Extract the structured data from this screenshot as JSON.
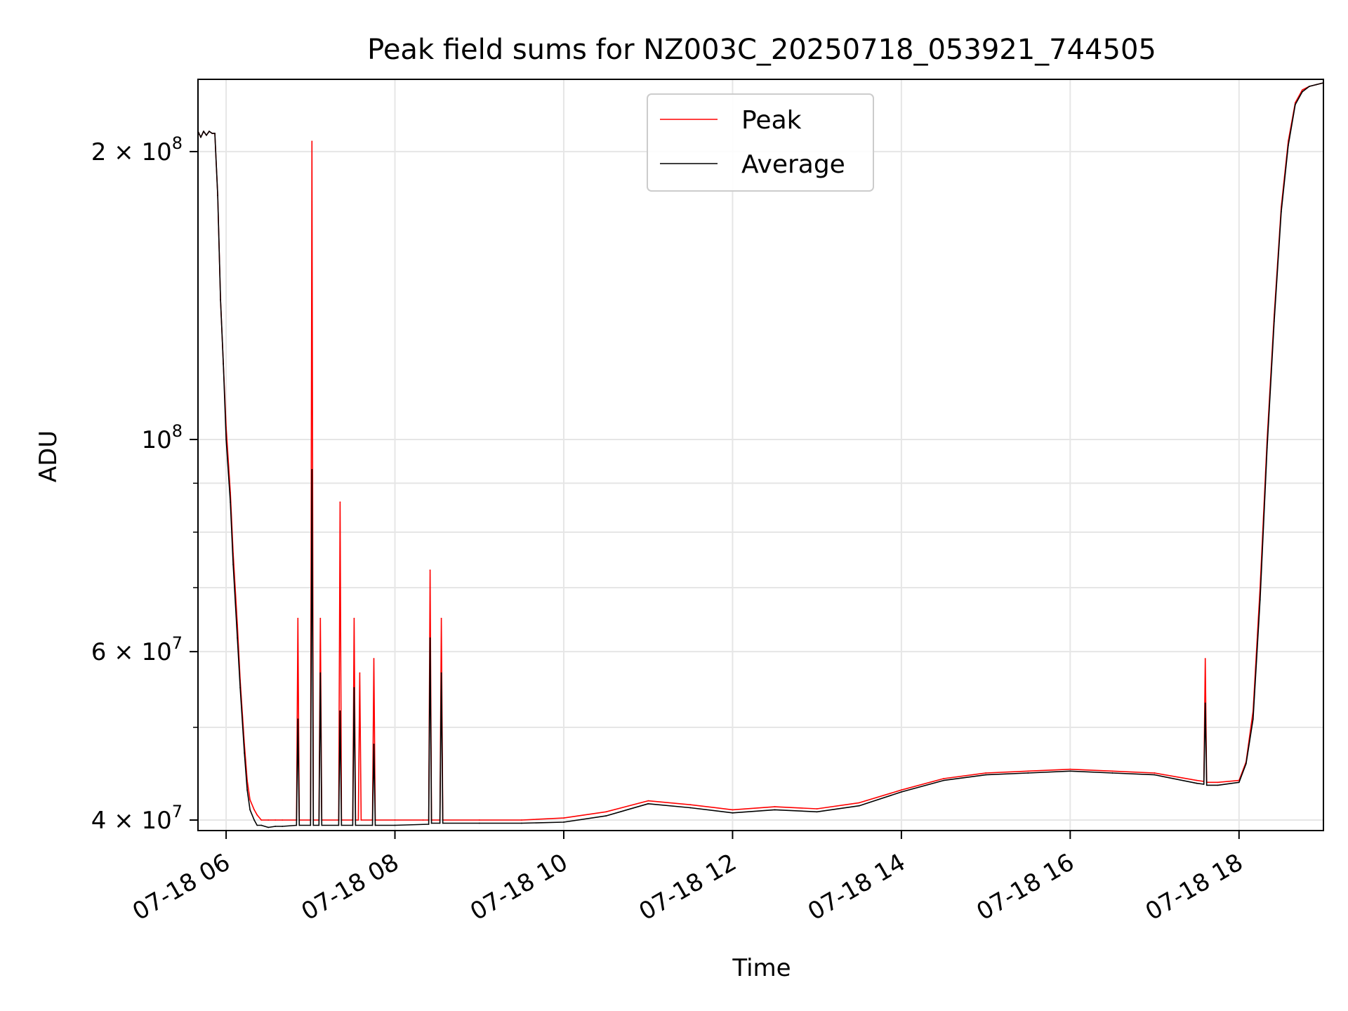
{
  "chart_data": {
    "type": "line",
    "title": "Peak field sums for NZ003C_20250718_053921_744505",
    "xlabel": "Time",
    "ylabel": "ADU",
    "x_scale": "time",
    "y_scale": "log",
    "xlim": [
      "2025-07-18 05:40",
      "2025-07-18 19:00"
    ],
    "ylim": [
      39000000,
      238000000
    ],
    "grid": true,
    "legend_position": "upper center",
    "x_ticks": [
      {
        "value": "2025-07-18 06:00",
        "label": "07-18 06"
      },
      {
        "value": "2025-07-18 08:00",
        "label": "07-18 08"
      },
      {
        "value": "2025-07-18 10:00",
        "label": "07-18 10"
      },
      {
        "value": "2025-07-18 12:00",
        "label": "07-18 12"
      },
      {
        "value": "2025-07-18 14:00",
        "label": "07-18 14"
      },
      {
        "value": "2025-07-18 16:00",
        "label": "07-18 16"
      },
      {
        "value": "2025-07-18 18:00",
        "label": "07-18 18"
      }
    ],
    "y_major_ticks": [
      {
        "value": 40000000,
        "base": "4 × 10",
        "exp": "7"
      },
      {
        "value": 60000000,
        "base": "6 × 10",
        "exp": "7"
      },
      {
        "value": 100000000,
        "base": "10",
        "exp": "8"
      },
      {
        "value": 200000000,
        "base": "2 × 10",
        "exp": "8"
      }
    ],
    "y_minor_ticks": [
      50000000,
      70000000,
      80000000,
      90000000
    ],
    "series": [
      {
        "name": "Peak",
        "color": "#ff0000",
        "x": [
          "2025-07-18 05:40",
          "2025-07-18 05:42",
          "2025-07-18 05:44",
          "2025-07-18 05:46",
          "2025-07-18 05:48",
          "2025-07-18 05:50",
          "2025-07-18 05:52",
          "2025-07-18 05:54",
          "2025-07-18 05:56",
          "2025-07-18 05:58",
          "2025-07-18 06:00",
          "2025-07-18 06:03",
          "2025-07-18 06:05",
          "2025-07-18 06:08",
          "2025-07-18 06:10",
          "2025-07-18 06:13",
          "2025-07-18 06:15",
          "2025-07-18 06:17",
          "2025-07-18 06:20",
          "2025-07-18 06:22",
          "2025-07-18 06:25",
          "2025-07-18 06:30",
          "2025-07-18 06:35",
          "2025-07-18 06:40",
          "2025-07-18 06:50",
          "2025-07-18 06:51",
          "2025-07-18 06:52",
          "2025-07-18 07:00",
          "2025-07-18 07:01",
          "2025-07-18 07:02",
          "2025-07-18 07:06",
          "2025-07-18 07:07",
          "2025-07-18 07:08",
          "2025-07-18 07:20",
          "2025-07-18 07:21",
          "2025-07-18 07:22",
          "2025-07-18 07:30",
          "2025-07-18 07:31",
          "2025-07-18 07:32",
          "2025-07-18 07:34",
          "2025-07-18 07:35",
          "2025-07-18 07:36",
          "2025-07-18 07:44",
          "2025-07-18 07:45",
          "2025-07-18 07:46",
          "2025-07-18 08:00",
          "2025-07-18 08:20",
          "2025-07-18 08:24",
          "2025-07-18 08:25",
          "2025-07-18 08:26",
          "2025-07-18 08:32",
          "2025-07-18 08:33",
          "2025-07-18 08:34",
          "2025-07-18 09:00",
          "2025-07-18 09:30",
          "2025-07-18 10:00",
          "2025-07-18 10:30",
          "2025-07-18 11:00",
          "2025-07-18 11:30",
          "2025-07-18 12:00",
          "2025-07-18 12:30",
          "2025-07-18 13:00",
          "2025-07-18 13:30",
          "2025-07-18 14:00",
          "2025-07-18 14:30",
          "2025-07-18 15:00",
          "2025-07-18 15:30",
          "2025-07-18 16:00",
          "2025-07-18 16:30",
          "2025-07-18 17:00",
          "2025-07-18 17:30",
          "2025-07-18 17:35",
          "2025-07-18 17:36",
          "2025-07-18 17:37",
          "2025-07-18 17:45",
          "2025-07-18 18:00",
          "2025-07-18 18:05",
          "2025-07-18 18:10",
          "2025-07-18 18:15",
          "2025-07-18 18:20",
          "2025-07-18 18:25",
          "2025-07-18 18:30",
          "2025-07-18 18:35",
          "2025-07-18 18:40",
          "2025-07-18 18:45",
          "2025-07-18 18:50",
          "2025-07-18 18:55",
          "2025-07-18 19:00"
        ],
        "y": [
          210000000,
          207000000,
          210000000,
          208000000,
          210000000,
          209000000,
          209000000,
          180000000,
          140000000,
          120000000,
          103000000,
          88000000,
          76000000,
          64000000,
          56000000,
          48000000,
          44000000,
          42000000,
          41000000,
          40500000,
          40000000,
          40000000,
          40000000,
          40000000,
          40000000,
          65000000,
          40000000,
          40000000,
          205000000,
          40000000,
          40000000,
          65000000,
          40000000,
          40000000,
          86000000,
          40000000,
          40000000,
          65000000,
          40000000,
          40000000,
          57000000,
          40000000,
          40000000,
          59000000,
          40000000,
          40000000,
          40000000,
          40000000,
          73000000,
          40000000,
          40000000,
          65000000,
          40000000,
          40000000,
          40000000,
          40200000,
          40800000,
          41900000,
          41500000,
          41000000,
          41300000,
          41100000,
          41700000,
          43000000,
          44200000,
          44800000,
          45000000,
          45200000,
          45000000,
          44800000,
          44000000,
          43900000,
          59000000,
          43800000,
          43800000,
          44000000,
          46000000,
          52000000,
          70000000,
          100000000,
          135000000,
          175000000,
          205000000,
          225000000,
          232000000,
          234000000,
          235000000,
          236000000
        ]
      },
      {
        "name": "Average",
        "color": "#000000",
        "x": [
          "2025-07-18 05:40",
          "2025-07-18 05:42",
          "2025-07-18 05:44",
          "2025-07-18 05:46",
          "2025-07-18 05:48",
          "2025-07-18 05:50",
          "2025-07-18 05:52",
          "2025-07-18 05:54",
          "2025-07-18 05:56",
          "2025-07-18 05:58",
          "2025-07-18 06:00",
          "2025-07-18 06:03",
          "2025-07-18 06:05",
          "2025-07-18 06:08",
          "2025-07-18 06:10",
          "2025-07-18 06:13",
          "2025-07-18 06:15",
          "2025-07-18 06:17",
          "2025-07-18 06:20",
          "2025-07-18 06:22",
          "2025-07-18 06:25",
          "2025-07-18 06:30",
          "2025-07-18 06:35",
          "2025-07-18 06:40",
          "2025-07-18 06:50",
          "2025-07-18 06:51",
          "2025-07-18 06:52",
          "2025-07-18 07:00",
          "2025-07-18 07:01",
          "2025-07-18 07:02",
          "2025-07-18 07:06",
          "2025-07-18 07:07",
          "2025-07-18 07:08",
          "2025-07-18 07:20",
          "2025-07-18 07:21",
          "2025-07-18 07:22",
          "2025-07-18 07:30",
          "2025-07-18 07:31",
          "2025-07-18 07:32",
          "2025-07-18 07:44",
          "2025-07-18 07:45",
          "2025-07-18 07:46",
          "2025-07-18 08:00",
          "2025-07-18 08:24",
          "2025-07-18 08:25",
          "2025-07-18 08:26",
          "2025-07-18 08:32",
          "2025-07-18 08:33",
          "2025-07-18 08:34",
          "2025-07-18 09:00",
          "2025-07-18 09:30",
          "2025-07-18 10:00",
          "2025-07-18 10:30",
          "2025-07-18 11:00",
          "2025-07-18 11:30",
          "2025-07-18 12:00",
          "2025-07-18 12:30",
          "2025-07-18 13:00",
          "2025-07-18 13:30",
          "2025-07-18 14:00",
          "2025-07-18 14:30",
          "2025-07-18 15:00",
          "2025-07-18 15:30",
          "2025-07-18 16:00",
          "2025-07-18 16:30",
          "2025-07-18 17:00",
          "2025-07-18 17:30",
          "2025-07-18 17:35",
          "2025-07-18 17:36",
          "2025-07-18 17:37",
          "2025-07-18 17:45",
          "2025-07-18 18:00",
          "2025-07-18 18:05",
          "2025-07-18 18:10",
          "2025-07-18 18:15",
          "2025-07-18 18:20",
          "2025-07-18 18:25",
          "2025-07-18 18:30",
          "2025-07-18 18:35",
          "2025-07-18 18:40",
          "2025-07-18 18:45",
          "2025-07-18 18:50",
          "2025-07-18 18:55",
          "2025-07-18 19:00"
        ],
        "y": [
          210000000,
          207000000,
          210000000,
          208000000,
          210000000,
          209000000,
          209000000,
          180000000,
          140000000,
          120000000,
          100000000,
          86000000,
          74000000,
          62000000,
          55000000,
          47000000,
          43000000,
          41000000,
          40000000,
          39500000,
          39500000,
          39300000,
          39400000,
          39400000,
          39500000,
          51000000,
          39500000,
          39500000,
          93000000,
          39500000,
          39500000,
          57000000,
          39500000,
          39500000,
          52000000,
          39500000,
          39500000,
          55000000,
          39500000,
          39500000,
          48000000,
          39500000,
          39500000,
          39600000,
          62000000,
          39700000,
          39700000,
          57000000,
          39700000,
          39700000,
          39700000,
          39800000,
          40400000,
          41600000,
          41200000,
          40700000,
          41000000,
          40800000,
          41400000,
          42800000,
          44000000,
          44600000,
          44800000,
          45000000,
          44800000,
          44600000,
          43700000,
          43600000,
          53000000,
          43500000,
          43500000,
          43800000,
          45800000,
          51000000,
          68000000,
          98000000,
          133000000,
          173000000,
          203000000,
          224000000,
          231000000,
          234000000,
          235000000,
          236000000
        ]
      }
    ]
  }
}
